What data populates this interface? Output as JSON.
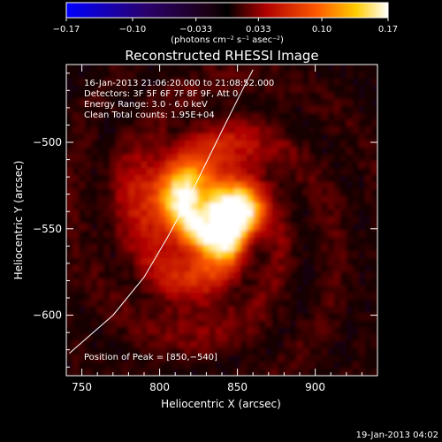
{
  "chart_data": {
    "type": "heatmap",
    "title": "Reconstructed RHESSI Image",
    "xlabel": "Heliocentric X (arcsec)",
    "ylabel": "Heliocentric Y (arcsec)",
    "xlim": [
      740,
      940
    ],
    "ylim": [
      -635,
      -455
    ],
    "x_ticks": [
      750,
      800,
      850,
      900
    ],
    "y_ticks": [
      -500,
      -550,
      -600
    ],
    "x_tick_labels": [
      "750",
      "800",
      "850",
      "900"
    ],
    "y_tick_labels": [
      "−500",
      "−550",
      "−600"
    ],
    "colorbar": {
      "range": [
        -0.17,
        0.17
      ],
      "ticks": [
        -0.17,
        -0.1,
        -0.033,
        0.033,
        0.1,
        0.17
      ],
      "tick_labels": [
        "−0.17",
        "−0.10",
        "−0.033",
        "0.033",
        "0.10",
        "0.17"
      ],
      "units_html": "(photons cm<tspan baseline-shift=\"super\" font-size=\"6\">−2</tspan> s<tspan baseline-shift=\"super\" font-size=\"6\">−1</tspan> asec<tspan baseline-shift=\"super\" font-size=\"6\">−2</tspan>)"
    },
    "annotations": [
      "16-Jan-2013 21:06:20.000 to 21:08:52.000",
      "Detectors: 3F 5F 6F 7F 8F 9F, Att 0",
      "Energy Range: 3.0 - 6.0 keV",
      "Clean    Total counts: 1.95E+04"
    ],
    "peak_label": "Position of Peak = [850,−540]",
    "peak": [
      850,
      -540
    ],
    "sources": [
      {
        "x": 850,
        "y": -540,
        "amp": 0.17,
        "sigma": 9
      },
      {
        "x": 835,
        "y": -553,
        "amp": 0.15,
        "sigma": 10
      },
      {
        "x": 818,
        "y": -532,
        "amp": 0.09,
        "sigma": 14
      },
      {
        "x": 800,
        "y": -530,
        "amp": 0.06,
        "sigma": 18
      },
      {
        "x": 840,
        "y": -515,
        "amp": 0.05,
        "sigma": 20
      },
      {
        "x": 820,
        "y": -575,
        "amp": 0.04,
        "sigma": 22
      }
    ],
    "limb_curve": [
      [
        742,
        -622
      ],
      [
        770,
        -600
      ],
      [
        790,
        -578
      ],
      [
        805,
        -555
      ],
      [
        820,
        -530
      ],
      [
        832,
        -508
      ],
      [
        843,
        -488
      ],
      [
        853,
        -470
      ],
      [
        860,
        -458
      ]
    ]
  },
  "footer_date": "19-Jan-2013 04:02"
}
